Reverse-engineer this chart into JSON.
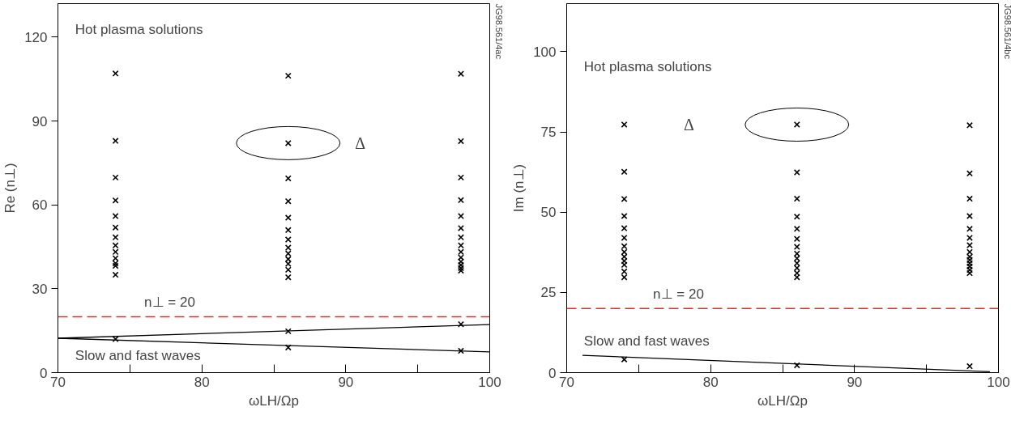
{
  "chart_data": [
    {
      "type": "scatter",
      "xlabel": "ωLH/Ωp",
      "ylabel": "Re (n⊥)",
      "xlim": [
        70,
        100
      ],
      "ylim": [
        0,
        132
      ],
      "xticks": [
        70,
        {
          "value": 75,
          "label": null
        },
        80,
        {
          "value": 85,
          "label": null
        },
        90,
        {
          "value": 95,
          "label": null
        },
        100
      ],
      "yticks": [
        0,
        30,
        60,
        90,
        120
      ],
      "marker": "cross",
      "grid": false,
      "series": [
        {
          "color": "#000000",
          "x": [
            74,
            74,
            74,
            74,
            74,
            74,
            74,
            74,
            74,
            74,
            74,
            74,
            74,
            86,
            86,
            86,
            86,
            86,
            86,
            86,
            86,
            86,
            86,
            86,
            86,
            86,
            98,
            98,
            98,
            98,
            98,
            98,
            98,
            98,
            98,
            98,
            98,
            98,
            98,
            98
          ],
          "values": [
            107.0,
            82.9,
            69.8,
            61.6,
            56.0,
            51.9,
            48.4,
            45.5,
            43.2,
            40.9,
            39.1,
            38.2,
            35.0,
            106.2,
            82.1,
            69.5,
            61.3,
            55.4,
            51.0,
            47.6,
            44.7,
            42.6,
            40.6,
            38.9,
            36.8,
            34.1,
            106.9,
            82.8,
            69.8,
            61.7,
            56.0,
            51.7,
            48.4,
            45.5,
            43.2,
            41.2,
            39.7,
            38.5,
            37.4,
            36.5
          ]
        },
        {
          "color": "#000000",
          "x": [
            74,
            86,
            86,
            98,
            98
          ],
          "values": [
            12.0,
            14.8,
            9.0,
            17.3,
            7.8
          ]
        },
        {
          "type": "line",
          "color": "#000000",
          "marker": "none",
          "x": [
            70,
            100
          ],
          "values": [
            12.3,
            17.2
          ]
        },
        {
          "type": "line",
          "color": "#000000",
          "marker": "none",
          "x": [
            70,
            100
          ],
          "values": [
            12.3,
            7.4
          ]
        }
      ],
      "ref_lines": [
        {
          "axis": "y",
          "value": 20,
          "label": "n⊥ = 20",
          "color": "#e8262a",
          "line_style": "dashed"
        }
      ],
      "annotations": [
        "Hot plasma solutions",
        "Slow and fast waves",
        "Δ",
        "JG98.561/4ac"
      ]
    },
    {
      "type": "scatter",
      "xlabel": "ωLH/Ωp",
      "ylabel": "Im (n⊥)",
      "xlim": [
        70,
        100
      ],
      "ylim": [
        0,
        115
      ],
      "xticks": [
        70,
        {
          "value": 75,
          "label": null
        },
        80,
        {
          "value": 85,
          "label": null
        },
        90,
        {
          "value": 95,
          "label": null
        },
        100
      ],
      "yticks": [
        0,
        25,
        50,
        75,
        100
      ],
      "marker": "cross",
      "grid": false,
      "series": [
        {
          "color": "#000000",
          "x": [
            74,
            74,
            74,
            74,
            74,
            74,
            74,
            74,
            74,
            74,
            74,
            74,
            74,
            86,
            86,
            86,
            86,
            86,
            86,
            86,
            86,
            86,
            86,
            86,
            86,
            86,
            98,
            98,
            98,
            98,
            98,
            98,
            98,
            98,
            98,
            98,
            98,
            98,
            98,
            98
          ],
          "values": [
            77.3,
            62.6,
            54.1,
            48.8,
            45.0,
            42.0,
            39.4,
            37.6,
            36.1,
            34.8,
            33.6,
            31.5,
            29.7,
            77.3,
            62.4,
            54.2,
            48.6,
            44.8,
            41.7,
            39.2,
            37.1,
            35.6,
            34.1,
            32.6,
            31.0,
            29.7,
            77.1,
            62.1,
            54.2,
            48.8,
            44.8,
            42.0,
            39.7,
            37.6,
            36.1,
            35.1,
            34.1,
            33.1,
            32.0,
            31.0
          ]
        },
        {
          "color": "#000000",
          "x": [
            74,
            86,
            98
          ],
          "values": [
            4.1,
            2.3,
            2.0
          ]
        },
        {
          "type": "line",
          "color": "#000000",
          "marker": "none",
          "x": [
            71.1,
            99.4
          ],
          "values": [
            5.4,
            0.3
          ]
        }
      ],
      "ref_lines": [
        {
          "axis": "y",
          "value": 20,
          "label": "n⊥ = 20",
          "color": "#e8262a",
          "line_style": "dashed"
        }
      ],
      "annotations": [
        "Hot plasma solutions",
        "Slow and fast waves",
        "Δ",
        "JG98.561/4bc"
      ]
    }
  ]
}
